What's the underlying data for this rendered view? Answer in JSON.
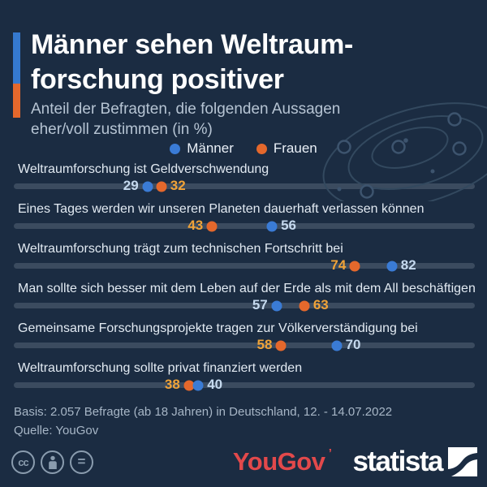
{
  "header": {
    "title_lines": [
      "Männer sehen Weltraum-",
      "forschung positiver"
    ],
    "subtitle_lines": [
      "Anteil der Befragten, die folgenden Aussagen",
      "eher/voll zustimmen (in %)"
    ]
  },
  "legend": {
    "items": [
      {
        "label": "Männer",
        "color": "#3a7bd5"
      },
      {
        "label": "Frauen",
        "color": "#e4682c"
      }
    ]
  },
  "chart_data": {
    "type": "scatter",
    "variant": "dot-plot-dumbbell",
    "categories": [
      "Weltraumforschung ist Geldverschwendung",
      "Eines Tages werden wir unseren Planeten dauerhaft verlassen können",
      "Weltraumforschung trägt zum technischen Fortschritt bei",
      "Man sollte sich besser mit dem Leben auf der Erde als mit dem All beschäftigen",
      "Gemeinsame Forschungsprojekte tragen zur Völkerverständigung bei",
      "Weltraumforschung sollte privat finanziert werden"
    ],
    "series": [
      {
        "name": "Männer",
        "color": "#3a7bd5",
        "label_color": "#c5d9ee",
        "values": [
          29,
          56,
          82,
          57,
          70,
          40
        ]
      },
      {
        "name": "Frauen",
        "color": "#e4682c",
        "label_color": "#f0a338",
        "values": [
          32,
          43,
          74,
          63,
          58,
          38
        ]
      }
    ],
    "xlim": [
      0,
      100
    ],
    "unit": "%",
    "grid": false,
    "legend_position": "top-center"
  },
  "footer": {
    "basis": "Basis: 2.057 Befragte (ab 18 Jahren) in Deutschland, 12. - 14.07.2022",
    "quelle": "Quelle: YouGov"
  },
  "branding": {
    "yougov_text": "YouGov",
    "yougov_mark": "’",
    "statista_text": "statista"
  },
  "license": {
    "cc_glyph": "cc",
    "nd_glyph": "="
  },
  "colors": {
    "background": "#1b2c42",
    "track": "#3b4b5f",
    "accent_blue": "#3579cf",
    "accent_orange": "#e4682c",
    "title": "#ffffff",
    "subtitle": "#b6c4d3",
    "row_label": "#e2eaf2",
    "value_blue_text": "#c5d9ee",
    "value_orange_text": "#f0a338",
    "footer_text": "#a7b6c6",
    "yougov_red": "#e2494b",
    "icon_gray": "#8a9cae",
    "orbit_stroke": "#33495f"
  }
}
